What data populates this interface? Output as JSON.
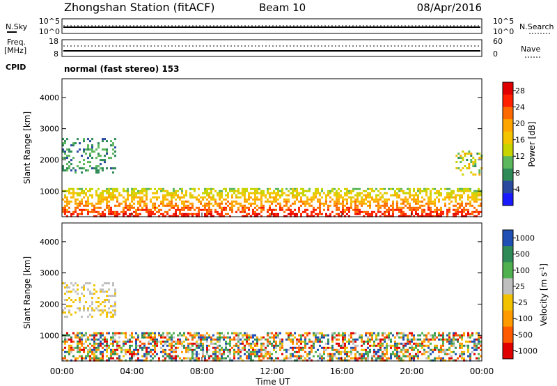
{
  "header": {
    "title": "Zhongshan Station (fitACF)",
    "beam": "Beam 10",
    "date": "08/Apr/2016"
  },
  "noise_panel": {
    "left_label": "N.Sky",
    "right_label": "N.Search",
    "left_ticks": [
      "10^5",
      "10^0"
    ],
    "right_ticks": [
      "10^5",
      "10^0"
    ]
  },
  "freq_panel": {
    "left_label_1": "Freq.",
    "left_label_2": "[MHz]",
    "right_label": "Nave",
    "left_ticks": [
      "18",
      "8"
    ],
    "right_ticks": [
      "60",
      "0"
    ]
  },
  "cpid": {
    "label": "CPID",
    "mode_text": "normal (fast stereo) 153"
  },
  "time_axis": {
    "label": "Time UT",
    "ticks": [
      "00:00",
      "04:00",
      "08:00",
      "12:00",
      "16:00",
      "20:00",
      "00:00"
    ],
    "range_hours": [
      0,
      24
    ]
  },
  "chart_data": [
    {
      "type": "heatmap",
      "panel": "power",
      "ylabel": "Slant Range [km]",
      "yticks": [
        1000,
        2000,
        3000,
        4000
      ],
      "ylim": [
        180,
        4600
      ],
      "xlim": [
        0,
        24
      ],
      "colorbar": {
        "label": "Power [dB]",
        "ticks": [
          4,
          8,
          12,
          16,
          20,
          24,
          28
        ],
        "range": [
          0,
          30
        ],
        "colors": [
          "#1a1aff",
          "#2a4aa0",
          "#2e8b57",
          "#5cb85c",
          "#c8d400",
          "#f5c400",
          "#ffa500",
          "#ff6a00",
          "#ff2000",
          "#e00000"
        ]
      },
      "features": [
        {
          "name": "near-range band",
          "hours": [
            0,
            24
          ],
          "range_km": [
            200,
            1100
          ],
          "power_db": [
            10,
            28
          ]
        },
        {
          "name": "early extended echoes",
          "hours": [
            0,
            3
          ],
          "range_km": [
            1600,
            2700
          ],
          "power_db": [
            4,
            12
          ]
        },
        {
          "name": "late extended echoes",
          "hours": [
            22.5,
            24
          ],
          "range_km": [
            1500,
            2300
          ],
          "power_db": [
            8,
            20
          ]
        }
      ]
    },
    {
      "type": "heatmap",
      "panel": "velocity",
      "ylabel": "Slant Range [km]",
      "yticks": [
        1000,
        2000,
        3000,
        4000
      ],
      "ylim": [
        180,
        4600
      ],
      "xlim": [
        0,
        24
      ],
      "colorbar": {
        "label": "Velocity [m s^-1]",
        "ticks": [
          1000,
          500,
          100,
          25,
          -25,
          -100,
          -500,
          -1000
        ],
        "colors": [
          "#1f4fb4",
          "#2e8b57",
          "#4fb04f",
          "#bfbfbf",
          "#f2c200",
          "#ff9a00",
          "#ff5a00",
          "#e00000"
        ]
      },
      "features": [
        {
          "name": "near-range mixed velocities",
          "hours": [
            0,
            24
          ],
          "range_km": [
            200,
            1100
          ],
          "velocity_ms": [
            -500,
            500
          ]
        },
        {
          "name": "early low-velocity echoes",
          "hours": [
            0,
            3
          ],
          "range_km": [
            1600,
            2700
          ],
          "velocity_ms": [
            -25,
            25
          ]
        }
      ]
    }
  ]
}
